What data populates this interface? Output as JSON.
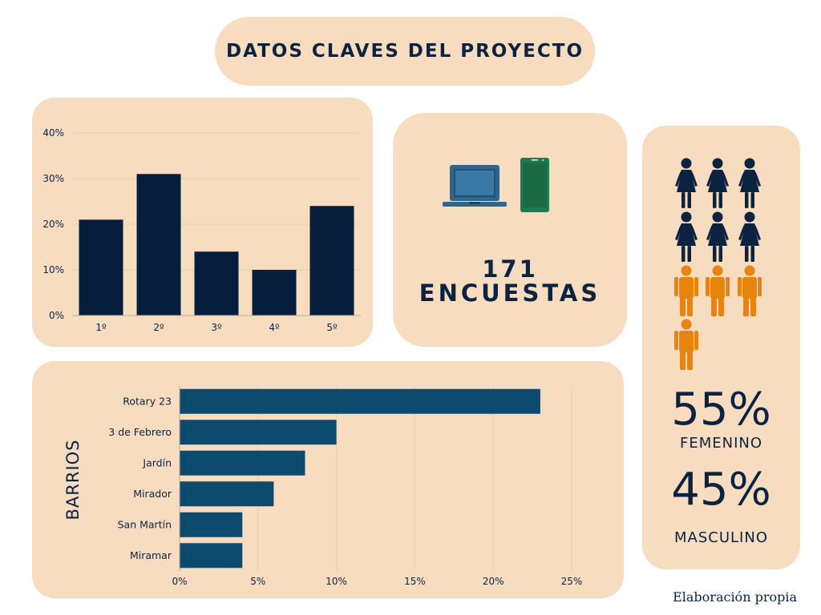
{
  "header": {
    "title": "DATOS CLAVES DEL PROYECTO"
  },
  "survey": {
    "count": "171",
    "label": "ENCUESTAS"
  },
  "icons": [
    "laptop-icon",
    "smartphone-icon",
    "woman-icon",
    "man-icon"
  ],
  "gender": {
    "female_pct": "55%",
    "female_label": "FEMENINO",
    "male_pct": "45%",
    "male_label": "MASCULINO",
    "female_icons": 6,
    "male_icons": 4
  },
  "colors": {
    "background_card": "#f7dcc0",
    "dark_navy": "#0b2340",
    "bar_blue": "#0d4b6e",
    "orange": "#e8830c",
    "laptop_blue": "#2f6690",
    "phone_green": "#1e7a4f"
  },
  "footer": {
    "note": "Elaboración propia"
  },
  "chart_data": [
    {
      "type": "bar",
      "orientation": "vertical",
      "categories": [
        "1º",
        "2º",
        "3º",
        "4º",
        "5º"
      ],
      "values": [
        21,
        31,
        14,
        10,
        24
      ],
      "yticks": [
        "0%",
        "10%",
        "20%",
        "30%",
        "40%"
      ],
      "ylim": [
        0,
        40
      ],
      "grid": true,
      "color": "#061d3c"
    },
    {
      "type": "bar",
      "orientation": "horizontal",
      "ylabel": "BARRIOS",
      "categories": [
        "Rotary 23",
        "3 de Febrero",
        "Jardín",
        "Mirador",
        "San Martín",
        "Miramar"
      ],
      "values": [
        23,
        10,
        8,
        6,
        4,
        4
      ],
      "xticks": [
        "0%",
        "5%",
        "10%",
        "15%",
        "20%",
        "25%"
      ],
      "xlim": [
        0,
        25
      ],
      "grid": true,
      "color": "#0d4b6e"
    }
  ]
}
